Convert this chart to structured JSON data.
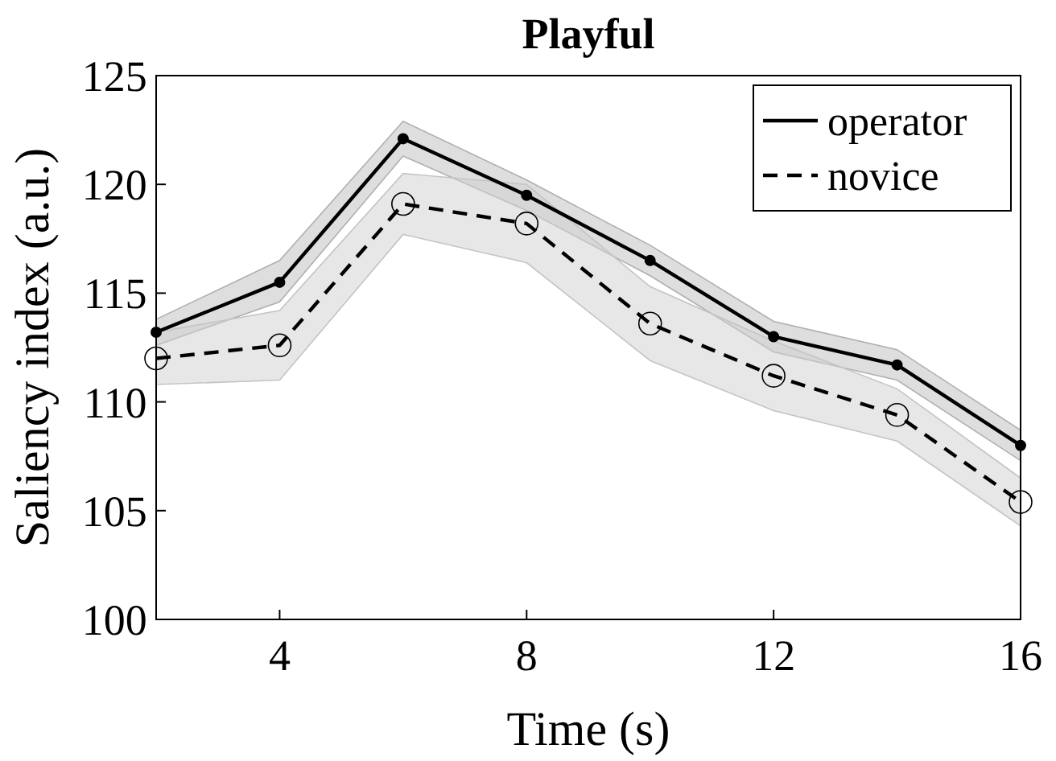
{
  "chart_data": {
    "type": "line",
    "title": "Playful",
    "xlabel": "Time (s)",
    "ylabel": "Saliency index (a.u.)",
    "x": [
      2,
      4,
      6,
      8,
      10,
      12,
      14,
      16
    ],
    "xlim": [
      2,
      16
    ],
    "xticks": [
      4,
      8,
      12,
      16
    ],
    "ylim": [
      100,
      125
    ],
    "yticks": [
      100,
      105,
      110,
      115,
      120,
      125
    ],
    "grid": false,
    "legend": "top right",
    "series": [
      {
        "name": "operator",
        "color": "#000000",
        "line_style": "solid",
        "marker": "circle",
        "values": [
          113.2,
          115.5,
          122.1,
          119.5,
          116.5,
          113.0,
          111.7,
          108.0
        ],
        "lower": [
          112.6,
          114.6,
          121.3,
          118.8,
          115.8,
          112.3,
          111.0,
          107.3
        ],
        "upper": [
          113.8,
          116.5,
          122.9,
          120.2,
          117.2,
          113.7,
          112.4,
          108.7
        ]
      },
      {
        "name": "novice",
        "color": "#000000",
        "line_style": "dashed",
        "marker": "open-circle",
        "values": [
          112.0,
          112.6,
          119.1,
          118.2,
          113.6,
          111.2,
          109.4,
          105.4
        ],
        "lower": [
          110.8,
          111.0,
          117.7,
          116.4,
          111.9,
          109.6,
          108.2,
          104.3
        ],
        "upper": [
          113.2,
          114.2,
          120.5,
          120.0,
          115.3,
          112.8,
          110.6,
          106.5
        ]
      }
    ]
  }
}
